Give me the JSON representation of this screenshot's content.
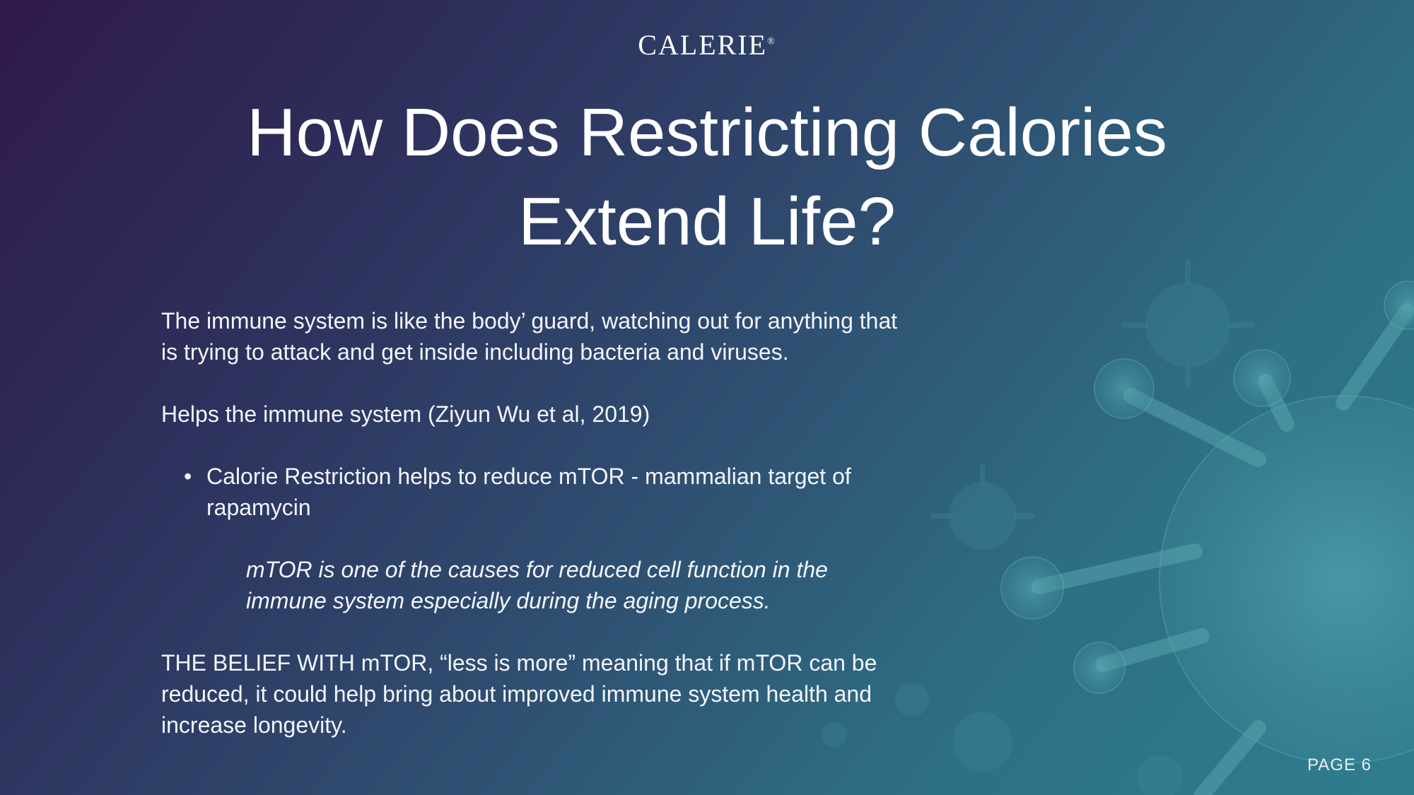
{
  "brand": {
    "name": "CALERIE",
    "mark": "®"
  },
  "title": {
    "line1": "How Does Restricting Calories",
    "line2": "Extend Life?"
  },
  "body": {
    "intro": "The immune system is like the body’ guard, watching out for anything that is trying to attack and get inside including bacteria and viruses.",
    "helps": "Helps the immune system (Ziyun Wu et al, 2019)",
    "bullet": "Calorie Restriction helps to reduce mTOR - mammalian target of rapamycin",
    "note": "mTOR is one of the causes for reduced cell function in the immune system especially during the aging process.",
    "belief": "THE BELIEF WITH mTOR, “less is more” meaning that if mTOR can be reduced, it could help bring about improved immune system health and increase longevity."
  },
  "footer": {
    "page": "PAGE 6"
  },
  "colors": {
    "bg_start": "#2f1a4a",
    "bg_end": "#2f7d8f",
    "text": "#ffffff",
    "virus": "#4b9ba6"
  },
  "icons": {
    "background_art": "virus-illustration-icon"
  }
}
